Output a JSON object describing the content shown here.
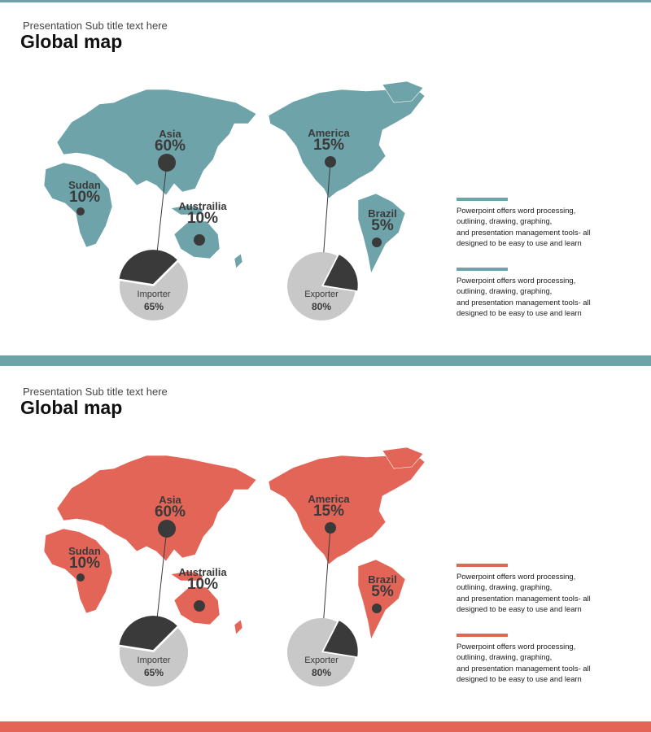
{
  "colors": {
    "teal": "#6fa3aa",
    "coral": "#e36557",
    "dark": "#3a3a3a",
    "grey": "#c8c8c8"
  },
  "slides": [
    {
      "theme": "teal",
      "subtitle": "Presentation Sub title text here",
      "title": "Global map",
      "markers": [
        {
          "name": "Asia",
          "pct": "60%"
        },
        {
          "name": "Sudan",
          "pct": "10%"
        },
        {
          "name": "Austrailia",
          "pct": "10%"
        },
        {
          "name": "America",
          "pct": "15%"
        },
        {
          "name": "Brazil",
          "pct": "5%"
        }
      ],
      "pies": [
        {
          "label": "Importer",
          "pct": "65%",
          "value": 0.65,
          "dark_share": 0.35
        },
        {
          "label": "Exporter",
          "pct": "80%",
          "value": 0.8,
          "dark_share": 0.2
        }
      ],
      "notes": [
        "Powerpoint offers word processing,\noutlining, drawing, graphing,\nand presentation management tools- all\ndesigned to be easy to use and learn",
        "Powerpoint offers word processing,\noutlining, drawing, graphing,\nand presentation management tools- all\ndesigned to be easy to use and learn"
      ]
    },
    {
      "theme": "coral",
      "subtitle": "Presentation Sub title text here",
      "title": "Global map",
      "markers": [
        {
          "name": "Asia",
          "pct": "60%"
        },
        {
          "name": "Sudan",
          "pct": "10%"
        },
        {
          "name": "Austrailia",
          "pct": "10%"
        },
        {
          "name": "America",
          "pct": "15%"
        },
        {
          "name": "Brazil",
          "pct": "5%"
        }
      ],
      "pies": [
        {
          "label": "Importer",
          "pct": "65%",
          "value": 0.65,
          "dark_share": 0.35
        },
        {
          "label": "Exporter",
          "pct": "80%",
          "value": 0.8,
          "dark_share": 0.2
        }
      ],
      "notes": [
        "Powerpoint offers word processing,\noutlining, drawing, graphing,\nand presentation management tools- all\ndesigned to be easy to use and learn",
        "Powerpoint offers word processing,\noutlining, drawing, graphing,\nand presentation management tools- all\ndesigned to be easy to use and learn"
      ]
    }
  ]
}
